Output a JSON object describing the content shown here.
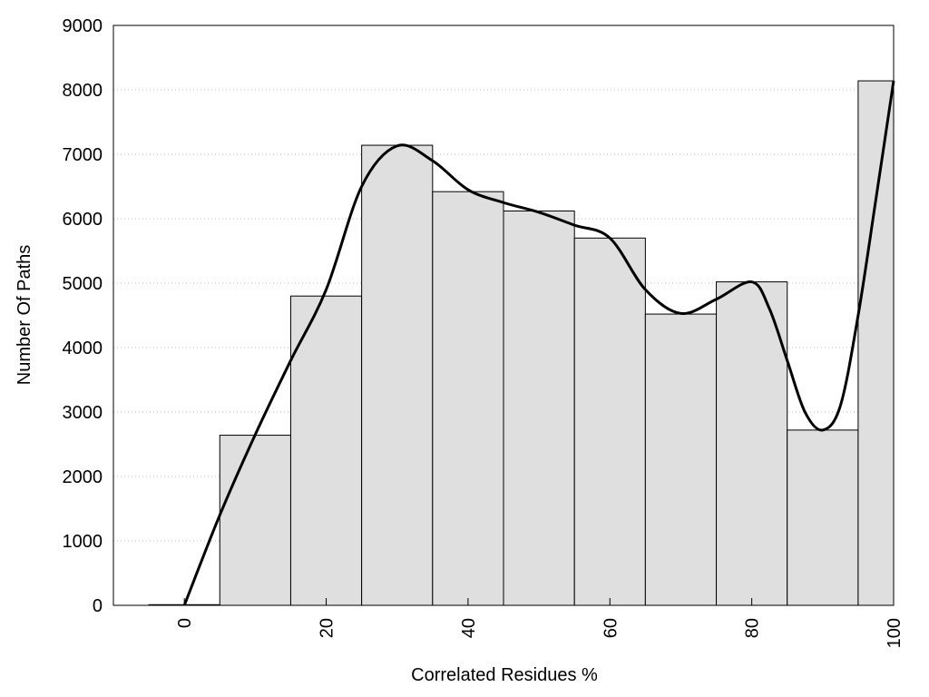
{
  "chart_data": {
    "type": "histogram",
    "xlabel": "Correlated Residues %",
    "ylabel": "Number Of Paths",
    "bins": [
      -5,
      5,
      15,
      25,
      35,
      45,
      55,
      65,
      75,
      85,
      95,
      100
    ],
    "values": [
      10,
      2640,
      4800,
      7140,
      6420,
      6120,
      5700,
      4520,
      5020,
      2720,
      8140
    ],
    "color": "#dfdfdf",
    "edgecolor": "#000000",
    "curve": {
      "color": "#000000",
      "x": [
        0,
        5,
        10,
        15,
        20,
        25,
        30,
        35,
        40,
        45,
        50,
        55,
        60,
        65,
        70,
        75,
        80,
        82.5,
        85,
        87.5,
        90,
        92.5,
        95,
        97.5,
        100
      ],
      "values": [
        0,
        1400,
        2650,
        3800,
        4900,
        6500,
        7130,
        6900,
        6450,
        6250,
        6100,
        5900,
        5700,
        4900,
        4530,
        4750,
        5020,
        4600,
        3800,
        3000,
        2720,
        3100,
        4500,
        6300,
        8140
      ]
    },
    "xlim": [
      -10,
      100
    ],
    "ylim": [
      0,
      9000
    ],
    "xticks": [
      0,
      20,
      40,
      60,
      80,
      100
    ],
    "yticks": [
      0,
      1000,
      2000,
      3000,
      4000,
      5000,
      6000,
      7000,
      8000,
      9000
    ],
    "grid": true
  }
}
